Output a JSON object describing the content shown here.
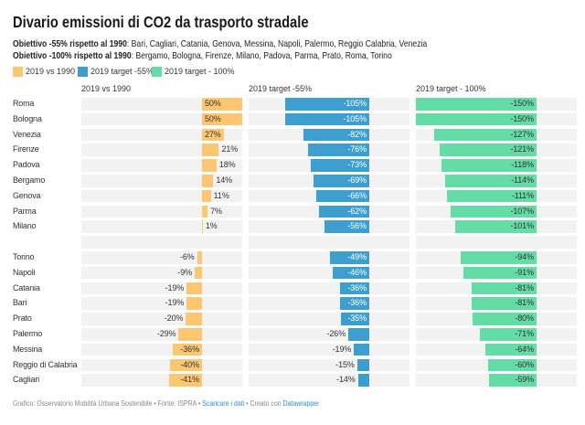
{
  "title": "Divario emissioni di CO2 da trasporto stradale",
  "subtitle": [
    {
      "bold": "Obiettivo -55% rispetto al 1990",
      "rest": ": Bari, Cagliari, Catania, Genova, Messina, Napoli, Palermo, Reggio Calabria, Venezia"
    },
    {
      "bold": "Obiettivo -100% rispetto al 1990",
      "rest": ": Bergamo, Bologna, Firenze, Milano, Padova, Parma, Prato, Roma, Torino"
    }
  ],
  "legend": [
    {
      "label": "2019 vs 1990",
      "color": "#fdc670"
    },
    {
      "label": "2019 target -55%",
      "color": "#3c9fd0"
    },
    {
      "label": "2019 target - 100%",
      "color": "#63dca6"
    }
  ],
  "footer": {
    "credit": "Grafico: Osservatorio Mobilità Urbana Sostenibile",
    "sep": " • ",
    "source": "Fonte: ISPRA",
    "download_link": "Scaricare i dati",
    "created_with": "Creato con ",
    "tool_link": "Datawrapper"
  },
  "chart_data": {
    "type": "bar",
    "orientation": "horizontal",
    "title": "Divario emissioni di CO2 da trasporto stradale",
    "xlim": [
      -150,
      50
    ],
    "unit": "%",
    "grid": false,
    "legend_position": "top-left",
    "groups": [
      [
        "Roma",
        "Bologna",
        "Venezia",
        "Firenze",
        "Padova",
        "Bergamo",
        "Genova",
        "Parma",
        "Milano"
      ],
      [
        "Torino",
        "Napoli",
        "Catania",
        "Bari",
        "Prato",
        "Palermo",
        "Messina",
        "Reggio di Calabria",
        "Cagliari"
      ]
    ],
    "categories": [
      "Roma",
      "Bologna",
      "Venezia",
      "Firenze",
      "Padova",
      "Bergamo",
      "Genova",
      "Parma",
      "Milano",
      "Torino",
      "Napoli",
      "Catania",
      "Bari",
      "Prato",
      "Palermo",
      "Messina",
      "Reggio di Calabria",
      "Cagliari"
    ],
    "series": [
      {
        "name": "2019 vs 1990",
        "color": "#fdc670",
        "inside_label_color": "#333333",
        "values": [
          50,
          50,
          27,
          21,
          18,
          14,
          11,
          7,
          1,
          -6,
          -9,
          -19,
          -19,
          -20,
          -29,
          -36,
          -40,
          -41
        ]
      },
      {
        "name": "2019 target -55%",
        "color": "#3c9fd0",
        "inside_label_color": "#ffffff",
        "values": [
          -105,
          -105,
          -82,
          -76,
          -73,
          -69,
          -66,
          -62,
          -56,
          -49,
          -46,
          -36,
          -36,
          -35,
          -26,
          -19,
          -15,
          -14
        ]
      },
      {
        "name": "2019 target - 100%",
        "color": "#63dca6",
        "inside_label_color": "#333333",
        "values": [
          -150,
          -150,
          -127,
          -121,
          -118,
          -114,
          -111,
          -107,
          -101,
          -94,
          -91,
          -81,
          -81,
          -80,
          -71,
          -64,
          -60,
          -59
        ]
      }
    ]
  }
}
